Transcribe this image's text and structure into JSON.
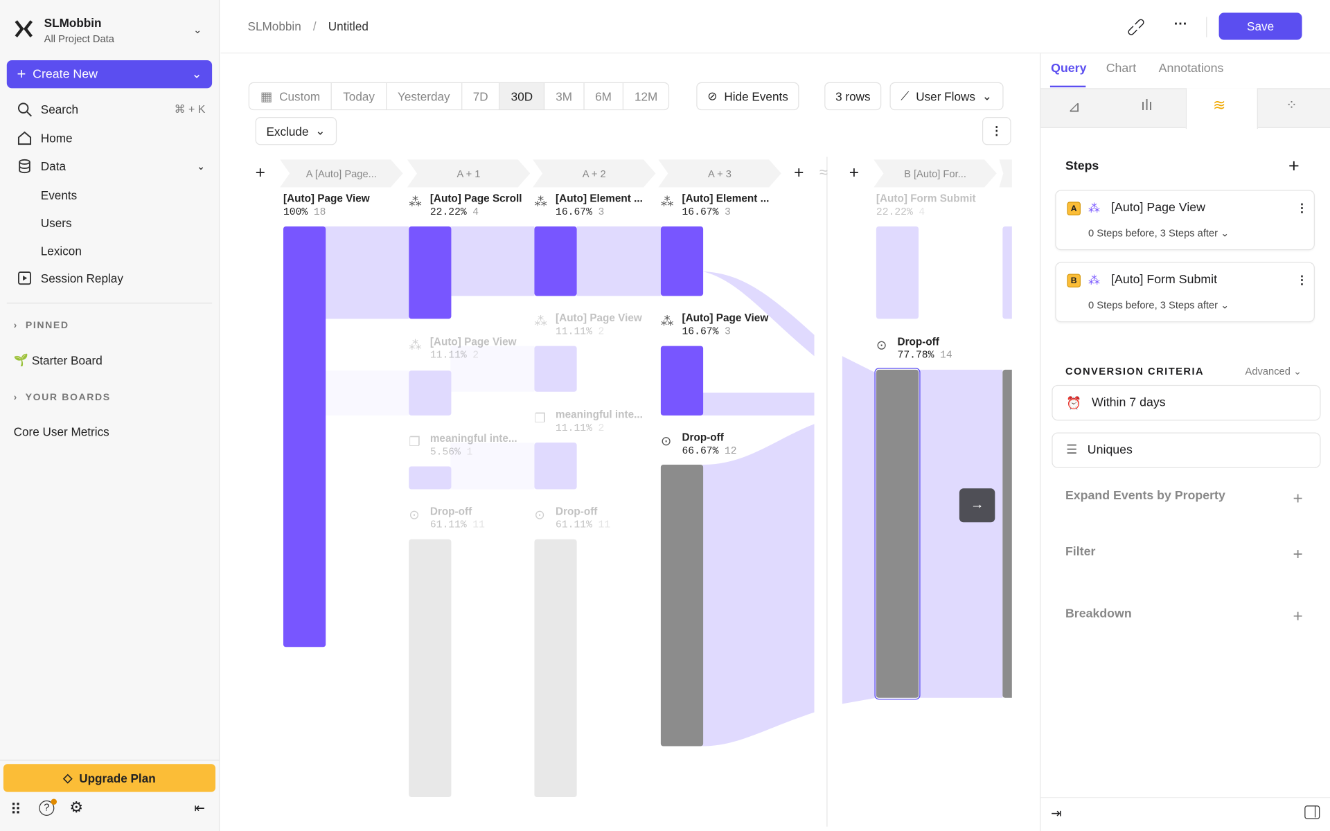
{
  "sidebar": {
    "project": "SLMobbin",
    "subtitle": "All Project Data",
    "create": "Create New",
    "search": "Search",
    "search_shortcut": "⌘ + K",
    "home": "Home",
    "data": "Data",
    "data_items": [
      "Events",
      "Users",
      "Lexicon"
    ],
    "session_replay": "Session Replay",
    "pinned": "PINNED",
    "starter_board": "Starter Board",
    "your_boards": "YOUR BOARDS",
    "core_metrics": "Core User Metrics",
    "upgrade": "Upgrade Plan"
  },
  "header": {
    "breadcrumb": [
      "SLMobbin",
      "/",
      "Untitled"
    ],
    "save": "Save"
  },
  "toolbar": {
    "ranges": [
      "Custom",
      "Today",
      "Yesterday",
      "7D",
      "30D",
      "3M",
      "6M",
      "12M"
    ],
    "selected_range": "30D",
    "hide_events": "Hide Events",
    "rows": "3 rows",
    "view": "User Flows",
    "exclude": "Exclude"
  },
  "chart_data": {
    "type": "sankey",
    "steps": [
      "A [Auto] Page...",
      "A + 1",
      "A + 2",
      "A + 3",
      "B [Auto] For..."
    ],
    "nodes": [
      {
        "label": "[Auto] Page View",
        "pct": "100%",
        "count": "18"
      },
      {
        "label": "[Auto] Page Scroll",
        "pct": "22.22%",
        "count": "4"
      },
      {
        "label": "[Auto] Page View",
        "pct": "11.11%",
        "count": "2"
      },
      {
        "label": "meaningful inte...",
        "pct": "5.56%",
        "count": "1"
      },
      {
        "label": "Drop-off",
        "pct": "61.11%",
        "count": "11"
      },
      {
        "label": "[Auto] Element ...",
        "pct": "16.67%",
        "count": "3"
      },
      {
        "label": "[Auto] Page View",
        "pct": "11.11%",
        "count": "2"
      },
      {
        "label": "meaningful inte...",
        "pct": "11.11%",
        "count": "2"
      },
      {
        "label": "Drop-off",
        "pct": "61.11%",
        "count": "11"
      },
      {
        "label": "[Auto] Element ...",
        "pct": "16.67%",
        "count": "3"
      },
      {
        "label": "[Auto] Page View",
        "pct": "16.67%",
        "count": "3"
      },
      {
        "label": "Drop-off",
        "pct": "66.67%",
        "count": "12"
      },
      {
        "label": "[Auto] Form Submit",
        "pct": "22.22%",
        "count": "4"
      },
      {
        "label": "Drop-off",
        "pct": "77.78%",
        "count": "14"
      }
    ],
    "colors": {
      "active": "#7856ff",
      "inactive": "#e0dafe",
      "dropoff": "#8c8c8c"
    }
  },
  "panel": {
    "tabs": [
      "Query",
      "Chart",
      "Annotations"
    ],
    "active_tab": "Query",
    "steps_title": "Steps",
    "steps": [
      {
        "badge": "A",
        "name": "[Auto] Page View",
        "detail": "0 Steps before, 3 Steps after"
      },
      {
        "badge": "B",
        "name": "[Auto] Form Submit",
        "detail": "0 Steps before, 3 Steps after"
      }
    ],
    "conversion": "CONVERSION CRITERIA",
    "advanced": "Advanced",
    "window": "Within 7 days",
    "counting": "Uniques",
    "expand": "Expand Events by Property",
    "filter": "Filter",
    "breakdown": "Breakdown"
  },
  "accent": "#5b4ef0",
  "upgrade_color": "#fbbd37"
}
